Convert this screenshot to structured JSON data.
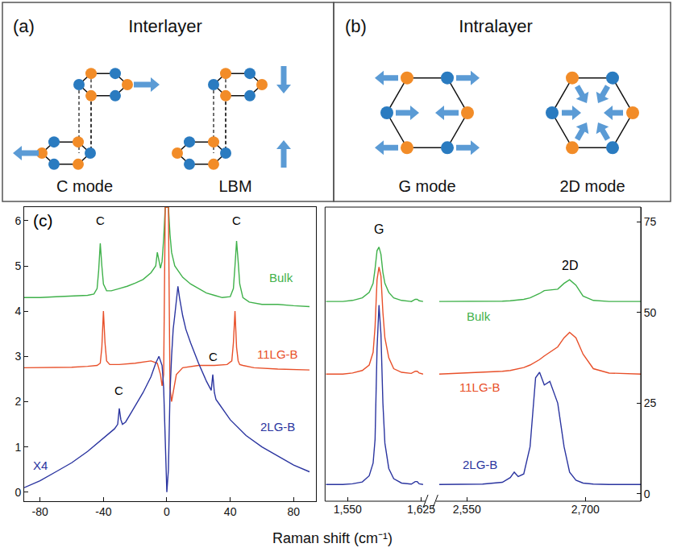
{
  "diagram": {
    "panel_a": {
      "label": "(a)",
      "title": "Interlayer",
      "modes": [
        "C mode",
        "LBM"
      ]
    },
    "panel_b": {
      "label": "(b)",
      "title": "Intralayer",
      "modes": [
        "G mode",
        "2D mode"
      ]
    }
  },
  "chart_data": [
    {
      "type": "line",
      "x_label": "Raman shift (cm⁻¹)",
      "xlim": [
        -90,
        94
      ],
      "xticks": [
        -80,
        -40,
        0,
        40,
        80
      ],
      "ylim": [
        -0.2,
        6.3
      ],
      "yticks": [
        0,
        1,
        2,
        3,
        4,
        5,
        6
      ],
      "grid": false,
      "series": [
        {
          "name": "Bulk",
          "color": "#3fb14a",
          "label": {
            "x": 72,
            "y": 4.75
          },
          "x": [
            -90,
            -80,
            -70,
            -60,
            -50,
            -46,
            -44,
            -43,
            -42,
            -41,
            -40,
            -38,
            -35,
            -30,
            -25,
            -20,
            -15,
            -10,
            -7,
            -6,
            -5,
            -4,
            -3,
            -2,
            -1,
            0,
            1,
            2,
            3,
            5,
            8,
            10,
            15,
            20,
            25,
            30,
            35,
            40,
            42,
            43,
            44,
            45,
            46,
            48,
            52,
            60,
            70,
            80,
            90
          ],
          "values": [
            4.3,
            4.3,
            4.32,
            4.33,
            4.35,
            4.38,
            4.5,
            4.9,
            5.5,
            5.0,
            4.6,
            4.45,
            4.45,
            4.5,
            4.55,
            4.62,
            4.7,
            4.85,
            5.0,
            5.3,
            5.1,
            4.95,
            5.1,
            5.6,
            6.3,
            6.3,
            6.3,
            5.7,
            5.3,
            5.0,
            4.85,
            4.75,
            4.6,
            4.5,
            4.4,
            4.35,
            4.3,
            4.32,
            4.5,
            5.0,
            5.55,
            5.1,
            4.6,
            4.3,
            4.2,
            4.15,
            4.15,
            4.12,
            4.1
          ]
        },
        {
          "name": "11LG-B",
          "color": "#e8502a",
          "label": {
            "x": 70,
            "y": 3.05
          },
          "x": [
            -90,
            -80,
            -70,
            -60,
            -50,
            -44,
            -42,
            -41,
            -40,
            -39,
            -38,
            -36,
            -30,
            -20,
            -10,
            -6,
            -4,
            -3,
            -2,
            -1,
            0,
            1,
            2,
            3,
            4,
            6,
            10,
            20,
            30,
            38,
            41,
            42,
            43,
            44,
            45,
            46,
            48,
            55,
            70,
            90
          ],
          "values": [
            2.75,
            2.75,
            2.75,
            2.76,
            2.78,
            2.8,
            2.85,
            3.2,
            4.0,
            3.3,
            2.9,
            2.82,
            2.82,
            2.85,
            2.9,
            2.85,
            2.6,
            2.35,
            2.6,
            6.3,
            6.3,
            6.3,
            2.3,
            2.0,
            2.2,
            2.6,
            2.75,
            2.8,
            2.8,
            2.82,
            2.9,
            3.3,
            4.0,
            3.2,
            2.9,
            2.82,
            2.8,
            2.75,
            2.72,
            2.7
          ]
        },
        {
          "name": "2LG-B",
          "color": "#2b35a0",
          "label": {
            "x": 70,
            "y": 1.45
          },
          "x": [
            -90,
            -80,
            -70,
            -60,
            -50,
            -40,
            -33,
            -31,
            -30,
            -29,
            -28,
            -26,
            -20,
            -15,
            -10,
            -7,
            -5,
            -3,
            -2,
            -1,
            0,
            1,
            2,
            3,
            4,
            5,
            6,
            7,
            8,
            10,
            12,
            15,
            20,
            25,
            28,
            29,
            30,
            31,
            33,
            40,
            50,
            60,
            70,
            80,
            90
          ],
          "values": [
            0.1,
            0.25,
            0.45,
            0.65,
            0.9,
            1.2,
            1.4,
            1.5,
            1.85,
            1.6,
            1.5,
            1.55,
            1.9,
            2.2,
            2.55,
            2.85,
            3.0,
            2.8,
            2.3,
            1.0,
            0,
            0.5,
            2.2,
            3.0,
            3.6,
            3.9,
            4.2,
            4.55,
            4.3,
            3.9,
            3.6,
            3.3,
            2.85,
            2.45,
            2.25,
            2.6,
            2.2,
            2.05,
            1.95,
            1.6,
            1.25,
            1.0,
            0.8,
            0.6,
            0.45
          ]
        }
      ],
      "annotations": [
        {
          "text": "(c)",
          "x": -78,
          "y": 6.0,
          "color": "#000000"
        },
        {
          "text": "C",
          "x": -42,
          "y": 6.0,
          "color": "#000000"
        },
        {
          "text": "C",
          "x": 44,
          "y": 6.0,
          "color": "#000000"
        },
        {
          "text": "C",
          "x": -30,
          "y": 2.25,
          "color": "#000000"
        },
        {
          "text": "C",
          "x": 29,
          "y": 3.0,
          "color": "#000000"
        },
        {
          "text": "X4",
          "x": -80,
          "y": 0.6,
          "color": "#2b35a0"
        }
      ]
    },
    {
      "type": "line",
      "xlim": [
        1527,
        1627
      ],
      "xticks": [
        {
          "value": 1550,
          "label": "1,550"
        },
        {
          "value": 1625,
          "label": "1,625"
        }
      ],
      "x2lim": [
        2515,
        2770
      ],
      "x2ticks": [
        {
          "value": 2550,
          "label": "2,550"
        },
        {
          "value": 2700,
          "label": "2,700"
        }
      ],
      "ylim": [
        -2,
        79
      ],
      "yticks": [
        0,
        25,
        50,
        75
      ],
      "grid": false,
      "x": [
        1528,
        1545,
        1555,
        1565,
        1572,
        1576,
        1578,
        1580,
        1582,
        1584,
        1586,
        1588,
        1592,
        1597,
        1605,
        1615,
        1619,
        1621,
        1623,
        1627,
        2515,
        2540,
        2570,
        2595,
        2605,
        2610,
        2615,
        2622,
        2630,
        2637,
        2642,
        2648,
        2655,
        2665,
        2673,
        2680,
        2688,
        2697,
        2710,
        2730,
        2770
      ],
      "series": [
        {
          "name": "Bulk",
          "color": "#3fb14a",
          "label": {
            "x": 2565,
            "y": 49
          },
          "values": [
            53,
            53,
            53.3,
            54,
            55.5,
            58,
            62,
            67,
            68,
            66,
            61,
            58,
            55.5,
            54,
            53.3,
            53,
            53.6,
            53.6,
            53.2,
            53,
            53,
            53,
            53,
            53.1,
            53.2,
            53.3,
            53.4,
            53.6,
            54,
            54.6,
            55.2,
            56,
            56.2,
            56.4,
            58,
            59,
            57.5,
            54.5,
            53.3,
            53,
            53
          ]
        },
        {
          "name": "11LG-B",
          "color": "#e8502a",
          "label": {
            "x": 2567,
            "y": 29.5
          },
          "values": [
            33,
            33,
            33.3,
            34,
            35.5,
            39,
            46,
            59,
            62.5,
            60,
            50,
            43,
            37.5,
            34.5,
            33.5,
            33.2,
            33.8,
            33.8,
            33.3,
            33,
            33,
            33.2,
            33.5,
            33.8,
            34,
            34.2,
            34.4,
            34.8,
            35.5,
            36.3,
            37,
            38,
            39,
            40.5,
            43,
            44.5,
            43,
            38.5,
            34.5,
            33.3,
            33
          ]
        },
        {
          "name": "2LG-B",
          "color": "#2b35a0",
          "label": {
            "x": 2567,
            "y": 8
          },
          "values": [
            2.6,
            2.6,
            2.8,
            3.3,
            5,
            8.5,
            15,
            40,
            52,
            44,
            25,
            14,
            7,
            4.2,
            3,
            2.7,
            3.4,
            3.4,
            2.8,
            2.6,
            2.6,
            2.6,
            2.7,
            3.2,
            4.5,
            6,
            4.8,
            5.5,
            13,
            32,
            33.5,
            30,
            31,
            25,
            13,
            6,
            3.8,
            3,
            2.7,
            2.6,
            2.6
          ]
        }
      ],
      "annotations": [
        {
          "text": "G",
          "x": 1582,
          "y": 73,
          "color": "#000000"
        },
        {
          "text": "2D",
          "x": 2680,
          "y": 63,
          "color": "#000000"
        }
      ]
    }
  ]
}
